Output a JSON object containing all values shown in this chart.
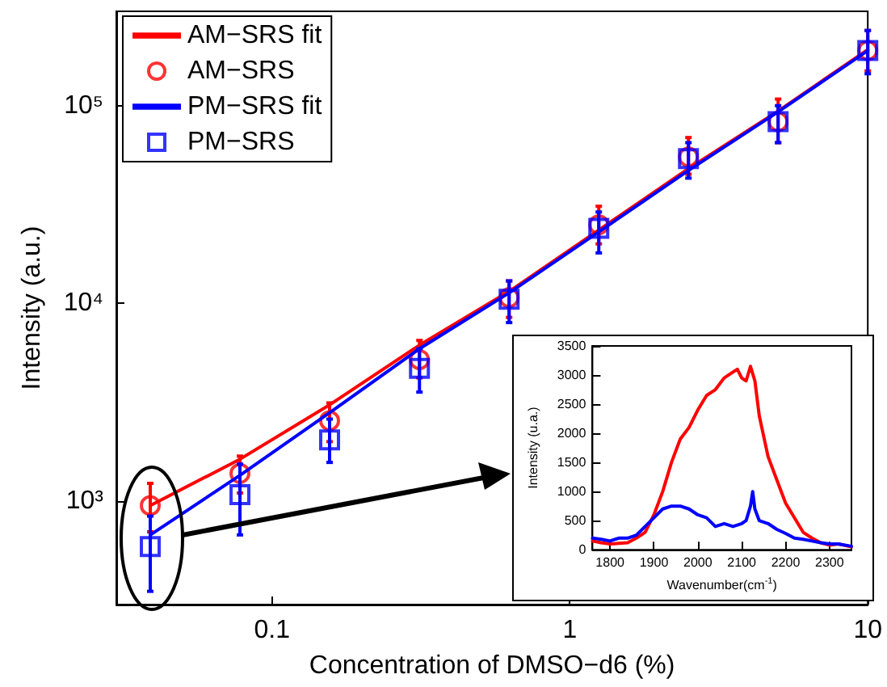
{
  "chart_data": [
    {
      "type": "scatter",
      "xlabel": "Concentration of DMSO−d6 (%)",
      "ylabel": "Intensity (a.u.)",
      "log": "xy",
      "grid": false,
      "legend": "top left",
      "x": [
        0.039,
        0.078,
        0.156,
        0.3125,
        0.625,
        1.25,
        2.5,
        5,
        10
      ],
      "xlim": [
        0.03,
        10
      ],
      "xticks": [
        0.1,
        1,
        10
      ],
      "ylim": [
        300,
        300000
      ],
      "yticks": [
        {
          "value": 1000,
          "label": "10³"
        },
        {
          "value": 10000,
          "label": "10⁴"
        },
        {
          "value": 100000,
          "label": "10⁵"
        }
      ],
      "series": [
        {
          "name": "AM−SRS fit",
          "type": "line",
          "color": "#ff0000",
          "marker": "none",
          "line_style": "solid",
          "values": [
            950,
            1630,
            3070,
            6150,
            11500,
            23500,
            48000,
            94000,
            192000
          ]
        },
        {
          "name": "AM−SRS",
          "type": "scatter",
          "color": "#ff0000",
          "marker": "circle",
          "values": [
            950,
            1380,
            2550,
            5200,
            10700,
            25000,
            55000,
            83000,
            190000
          ],
          "errors": [
            [
              700,
              1230
            ],
            [
              1100,
              1690
            ],
            [
              2000,
              3140
            ],
            [
              4200,
              6500
            ],
            [
              8500,
              13000
            ],
            [
              20000,
              31000
            ],
            [
              45000,
              69000
            ],
            [
              65000,
              108000
            ],
            [
              150000,
              240000
            ]
          ]
        },
        {
          "name": "PM−SRS fit",
          "type": "line",
          "color": "#0000ff",
          "marker": "none",
          "line_style": "solid",
          "values": [
            675,
            1350,
            2800,
            5900,
            11300,
            23000,
            47000,
            93000,
            190000
          ]
        },
        {
          "name": "PM−SRS",
          "type": "scatter",
          "color": "#0000ff",
          "marker": "square",
          "values": [
            590,
            1080,
            2040,
            4700,
            10500,
            24000,
            54000,
            83000,
            190000
          ],
          "errors": [
            [
              350,
              840
            ],
            [
              675,
              1540
            ],
            [
              1570,
              2600
            ],
            [
              3560,
              5900
            ],
            [
              8000,
              13000
            ],
            [
              18000,
              29000
            ],
            [
              43000,
              65000
            ],
            [
              65000,
              100000
            ],
            [
              145000,
              240000
            ]
          ]
        }
      ]
    },
    {
      "type": "line",
      "xlabel": "Wavenumber(cm$^{-1}$)",
      "ylabel": "Intensity (u.a.)",
      "grid": false,
      "legend": false,
      "marker": "none",
      "xlim": [
        1760,
        2350
      ],
      "xticks": [
        1800,
        1900,
        2000,
        2100,
        2200,
        2300
      ],
      "ylim": [
        0,
        3500
      ],
      "yticks": [
        0,
        500,
        1000,
        1500,
        2000,
        2500,
        3000,
        3500
      ],
      "series": [
        {
          "color": "#ff0000",
          "x": [
            1760,
            1780,
            1800,
            1820,
            1840,
            1860,
            1880,
            1900,
            1920,
            1940,
            1960,
            1980,
            2000,
            2020,
            2040,
            2060,
            2080,
            2090,
            2100,
            2110,
            2120,
            2130,
            2140,
            2160,
            2180,
            2200,
            2220,
            2240,
            2260,
            2280,
            2300,
            2320,
            2350
          ],
          "values": [
            150,
            120,
            100,
            110,
            120,
            200,
            300,
            600,
            1000,
            1500,
            1900,
            2100,
            2400,
            2650,
            2750,
            2950,
            3050,
            3100,
            2950,
            2900,
            3150,
            2900,
            2300,
            1600,
            1200,
            800,
            550,
            300,
            200,
            120,
            80,
            100,
            50
          ]
        },
        {
          "color": "#0000ff",
          "x": [
            1760,
            1780,
            1800,
            1820,
            1840,
            1860,
            1880,
            1900,
            1920,
            1940,
            1960,
            1980,
            2000,
            2020,
            2040,
            2060,
            2080,
            2100,
            2110,
            2120,
            2125,
            2130,
            2140,
            2160,
            2180,
            2200,
            2220,
            2240,
            2260,
            2280,
            2300,
            2320,
            2350
          ],
          "values": [
            200,
            180,
            150,
            200,
            200,
            250,
            400,
            550,
            700,
            750,
            750,
            700,
            600,
            550,
            400,
            450,
            400,
            450,
            500,
            750,
            1000,
            700,
            500,
            450,
            350,
            280,
            200,
            180,
            150,
            120,
            100,
            100,
            60
          ]
        }
      ]
    }
  ]
}
